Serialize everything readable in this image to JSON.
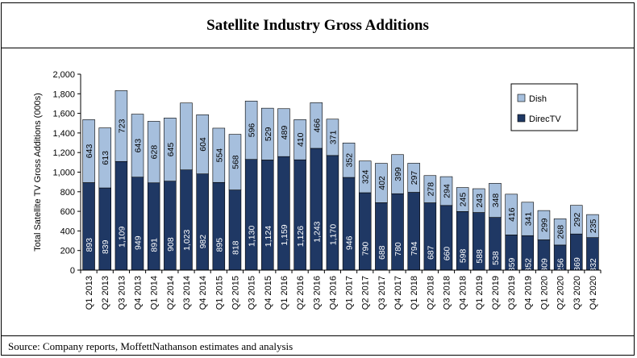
{
  "title": "Satellite Industry Gross Additions",
  "source": "Source: Company reports, MoffettNathanson estimates and analysis",
  "chart_data": {
    "type": "bar",
    "stacked": true,
    "ylabel": "Total Satellite TV Gross Additions (000s)",
    "ylim": [
      0,
      2000
    ],
    "yticks": [
      "0",
      "200",
      "400",
      "600",
      "800",
      "1,000",
      "1,200",
      "1,400",
      "1,600",
      "1,800",
      "2,000"
    ],
    "ytick_values": [
      0,
      200,
      400,
      600,
      800,
      1000,
      1200,
      1400,
      1600,
      1800,
      2000
    ],
    "grid": false,
    "legend": "top-right",
    "categories": [
      "Q1 2013",
      "Q2 2013",
      "Q3 2013",
      "Q4 2013",
      "Q1 2014",
      "Q2 2014",
      "Q3 2014",
      "Q4 2014",
      "Q1 2015",
      "Q2 2015",
      "Q3 2015",
      "Q4 2015",
      "Q1 2016",
      "Q2 2016",
      "Q3 2016",
      "Q4 2016",
      "Q1 2017",
      "Q2 2017",
      "Q3 2017",
      "Q4 2017",
      "Q1 2018",
      "Q2 2018",
      "Q3 2018",
      "Q4 2018",
      "Q1 2019",
      "Q2 2019",
      "Q3 2019",
      "Q4 2019",
      "Q1 2020",
      "Q2 2020",
      "Q3 2020",
      "Q4 2020"
    ],
    "series": [
      {
        "name": "DirecTV",
        "color": "#1f3864",
        "values": [
          893,
          839,
          1109,
          949,
          891,
          908,
          1023,
          982,
          895,
          818,
          1130,
          1124,
          1159,
          1126,
          1243,
          1170,
          946,
          790,
          688,
          780,
          794,
          687,
          660,
          598,
          588,
          538,
          359,
          352,
          309,
          256,
          369,
          332
        ],
        "labels": [
          "893",
          "839",
          "1,109",
          "949",
          "891",
          "908",
          "1,023",
          "982",
          "895",
          "818",
          "1,130",
          "1,124",
          "1,159",
          "1,126",
          "1,243",
          "1,170",
          "946",
          "790",
          "688",
          "780",
          "794",
          "687",
          "660",
          "598",
          "588",
          "538",
          "359",
          "352",
          "309",
          "256",
          "369",
          "332"
        ]
      },
      {
        "name": "Dish",
        "color": "#a6bfdd",
        "values": [
          643,
          613,
          723,
          643,
          628,
          645,
          683,
          604,
          554,
          568,
          596,
          529,
          489,
          410,
          466,
          371,
          352,
          324,
          402,
          399,
          297,
          278,
          294,
          245,
          243,
          348,
          416,
          341,
          299,
          268,
          292,
          235
        ],
        "labels": [
          "643",
          "613",
          "723",
          "643",
          "628",
          "645",
          "",
          "604",
          "554",
          "568",
          "596",
          "529",
          "489",
          "410",
          "466",
          "371",
          "352",
          "324",
          "402",
          "399",
          "297",
          "278",
          "294",
          "245",
          "243",
          "348",
          "416",
          "341",
          "299",
          "268",
          "292",
          "235"
        ]
      }
    ]
  }
}
